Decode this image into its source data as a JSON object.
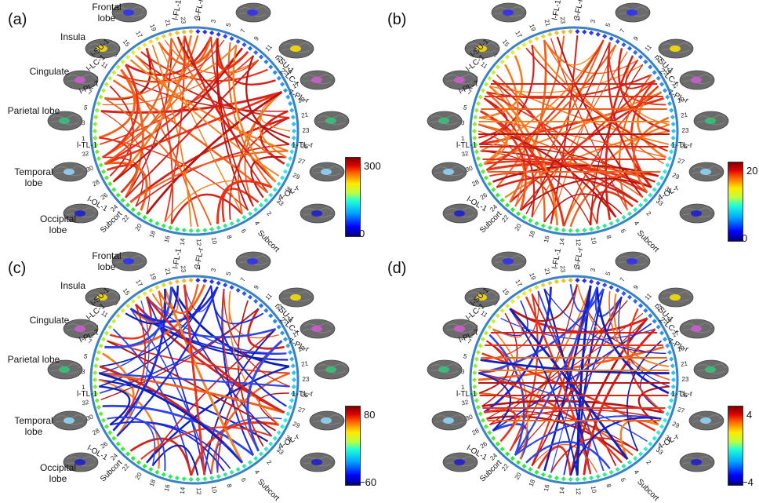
{
  "panels": [
    {
      "id": "a",
      "label": "(a)",
      "cbar_max": "300",
      "cbar_min": "0",
      "lobe_labels": true
    },
    {
      "id": "b",
      "label": "(b)",
      "cbar_max": "20",
      "cbar_min": "0",
      "lobe_labels": false
    },
    {
      "id": "c",
      "label": "(c)",
      "cbar_max": "80",
      "cbar_min": "−60",
      "lobe_labels": true
    },
    {
      "id": "d",
      "label": "(d)",
      "cbar_max": "4",
      "cbar_min": "−4",
      "lobe_labels": false
    }
  ],
  "lobes": {
    "frontal": "Frontal lobe",
    "insula": "Insula",
    "cingulate": "Cingulate",
    "parietal": "Parietal lobe",
    "temporal": "Temporal lobe",
    "occipital": "Occipital lobe"
  },
  "ring_labels": {
    "top_left": "l-FL-1",
    "top_right": "3-FL-r",
    "left": [
      "l-SU-1",
      "l-LC-1",
      "l-PL-7",
      "l-TL-1",
      "l-OL-1",
      "Subcort"
    ],
    "right": [
      "r-SU-1",
      "2-LC-r",
      "7-PL-r",
      "1-TL-r",
      "4-OL-r",
      "Subcort"
    ],
    "left_nums": [
      "21",
      "24",
      "28",
      "30",
      "5",
      "6",
      "8",
      "14",
      "29",
      "32"
    ],
    "right_nums": [
      "21",
      "24",
      "28",
      "30",
      "5",
      "6",
      "8",
      "14",
      "29",
      "33"
    ]
  },
  "colors": {
    "hot": [
      "#d4231b",
      "#e8331a",
      "#f2611c",
      "#f4801f",
      "#b81414"
    ],
    "cold": [
      "#1a28e0",
      "#2f45ee",
      "#0d1fbf"
    ],
    "ring": "#3a82c8"
  }
}
